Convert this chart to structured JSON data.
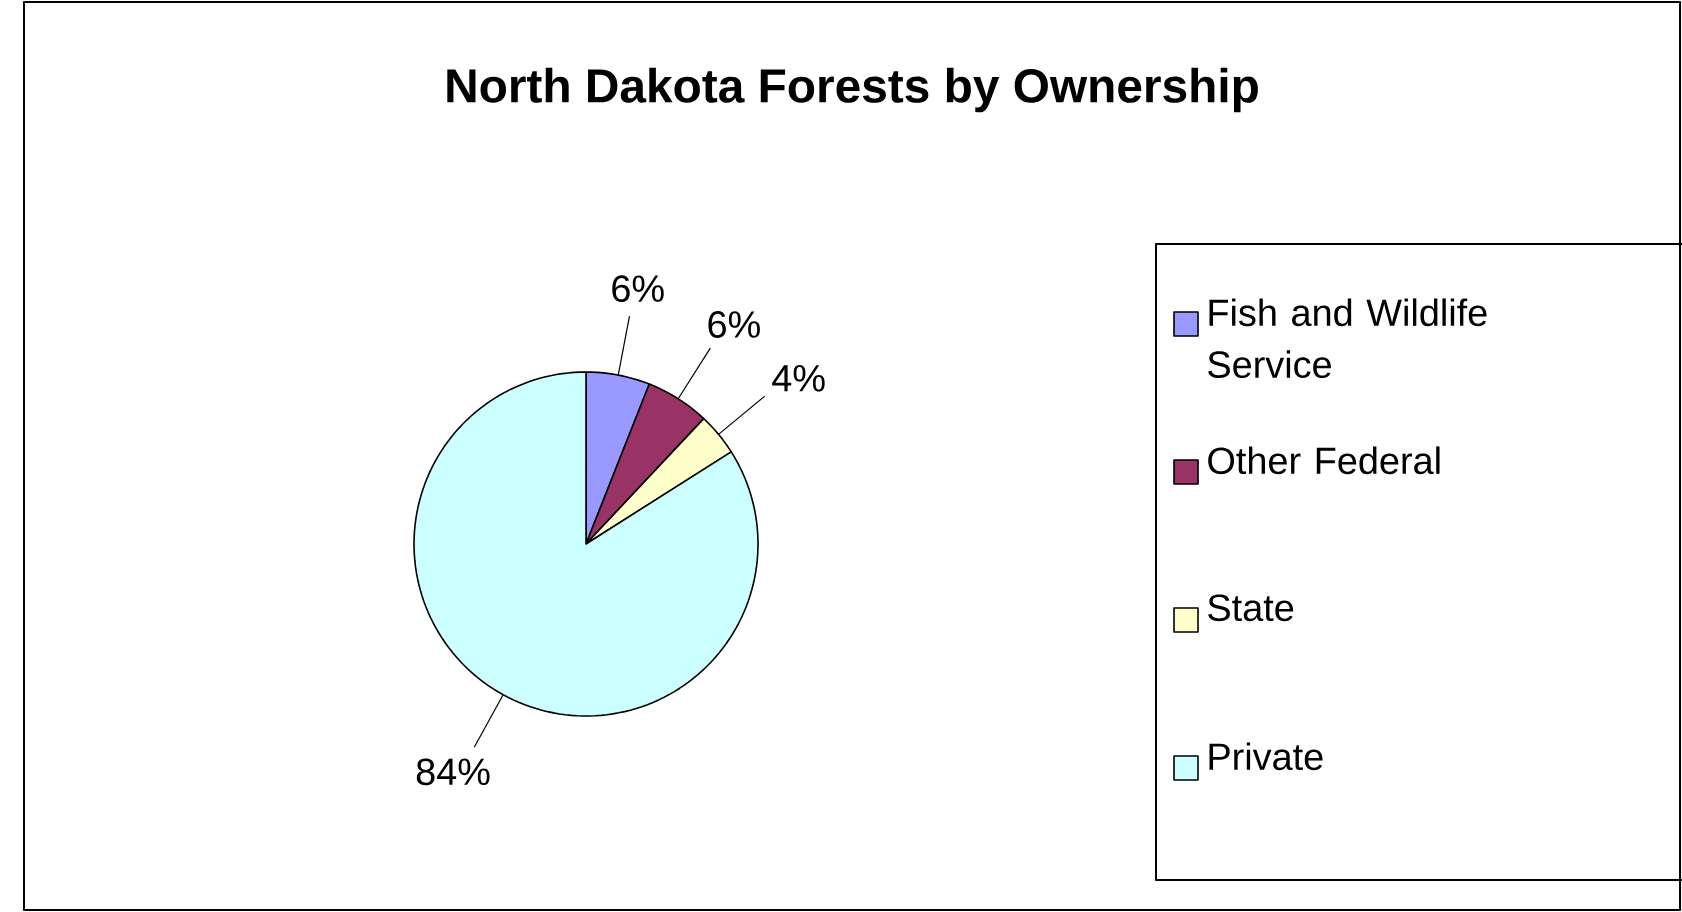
{
  "chart_data": {
    "type": "pie",
    "title": "North Dakota Forests by Ownership",
    "categories": [
      "Fish and Wildlife Service",
      "Other Federal",
      "State",
      "Private"
    ],
    "values": [
      6,
      6,
      4,
      84
    ],
    "colors": [
      "#9999ff",
      "#993366",
      "#ffffcc",
      "#ccffff"
    ],
    "value_labels": [
      "6%",
      "6%",
      "4%",
      "84%"
    ],
    "legend": "right"
  }
}
